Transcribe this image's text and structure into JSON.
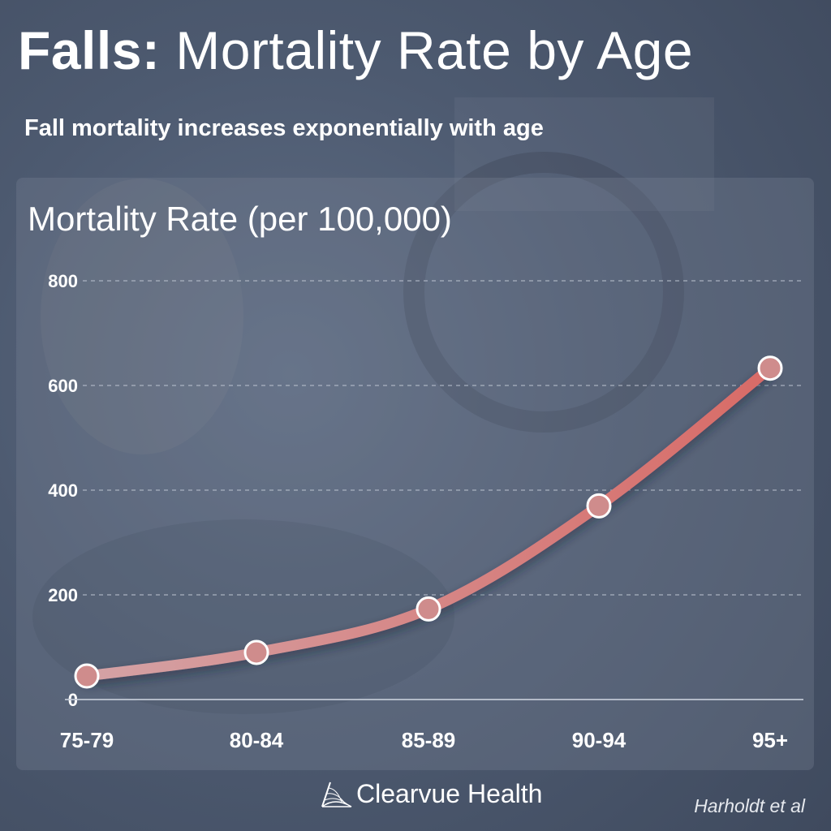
{
  "header": {
    "title_bold": "Falls:",
    "title_rest": "Mortality Rate by Age",
    "subtitle": "Fall mortality increases exponentially with age"
  },
  "chart_data": {
    "type": "line",
    "title": "Mortality Rate (per 100,000)",
    "categories": [
      "75-79",
      "80-84",
      "85-89",
      "90-94",
      "95+"
    ],
    "series": [
      {
        "values": [
          45,
          90,
          173,
          370,
          633
        ]
      }
    ],
    "ylim": [
      0,
      800
    ],
    "yticks": [
      0,
      200,
      400,
      600,
      800
    ],
    "grid": true,
    "line_colors": [
      "#d4a3a6",
      "#d86a66"
    ],
    "marker_color": "#cf8c8c"
  },
  "footer": {
    "brand": "Clearvue Health",
    "source": "Harholdt et al"
  },
  "colors": {
    "background": "#4d5a70",
    "text": "#ffffff",
    "gridline": "#c3cad6"
  }
}
